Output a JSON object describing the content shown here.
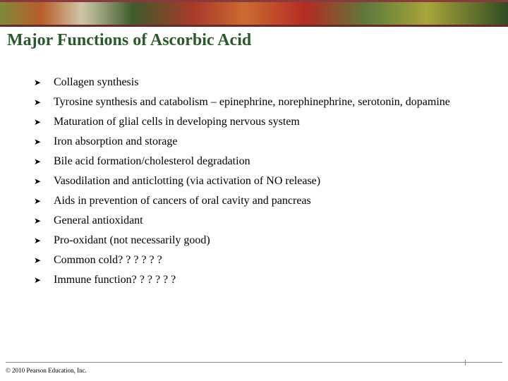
{
  "title": "Major Functions of Ascorbic Acid",
  "bullet_glyph": "➤",
  "items": [
    "Collagen synthesis",
    "Tyrosine synthesis and catabolism – epinephrine, norephinephrine, serotonin, dopamine",
    "Maturation of glial cells in developing nervous system",
    "Iron absorption and storage",
    "Bile acid formation/cholesterol degradation",
    "Vasodilation and anticlotting (via activation of NO release)",
    "Aids in prevention of cancers of oral cavity and pancreas",
    "General antioxidant",
    "Pro-oxidant (not necessarily good)",
    "Common cold? ? ? ? ? ?",
    "Immune function? ? ? ? ? ?"
  ],
  "footer": "© 2010 Pearson Education, Inc.",
  "colors": {
    "title_color": "#2a5a2a",
    "text_color": "#000000",
    "background": "#ffffff"
  },
  "typography": {
    "title_fontsize": 24,
    "body_fontsize": 16,
    "footer_fontsize": 9,
    "font_family": "Times New Roman"
  }
}
